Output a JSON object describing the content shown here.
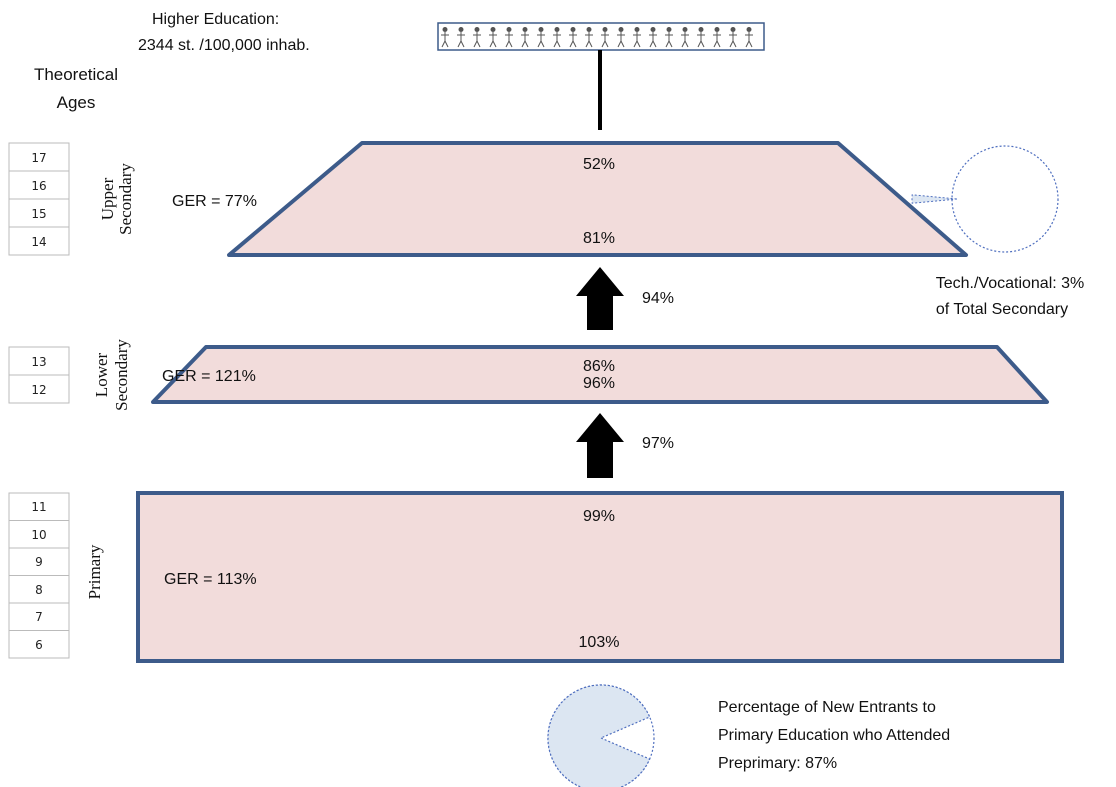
{
  "higher_education": {
    "line1": "Higher Education:",
    "line2": "2344 st. /100,000 inhab.",
    "people_count": 20
  },
  "ages_header": {
    "line1": "Theoretical",
    "line2": "Ages"
  },
  "levels": {
    "upper_secondary": {
      "label_line1": "Upper",
      "label_line2": "Secondary",
      "ages": [
        "17",
        "16",
        "15",
        "14"
      ],
      "ger": "GER = 77%",
      "top_rate": "52%",
      "bottom_rate": "81%"
    },
    "lower_secondary": {
      "label_line1": "Lower",
      "label_line2": "Secondary",
      "ages": [
        "13",
        "12"
      ],
      "ger": "GER = 121%",
      "top_rate": "86%",
      "bottom_rate": "96%"
    },
    "primary": {
      "label": "Primary",
      "ages": [
        "11",
        "10",
        "9",
        "8",
        "7",
        "6"
      ],
      "ger": "GER = 113%",
      "top_rate": "99%",
      "bottom_rate": "103%"
    }
  },
  "transitions": {
    "lower_to_upper": "94%",
    "primary_to_lower": "97%"
  },
  "tech_vocational": {
    "line1": "Tech./Vocational: 3%",
    "line2": "of Total Secondary",
    "share": 0.03
  },
  "preprimary": {
    "line1": "Percentage of New Entrants to",
    "line2": "Primary Education who Attended",
    "line3": "Preprimary: 87%",
    "share": 0.87
  },
  "colors": {
    "fill": "#f2dcdb",
    "outline": "#3d5b8a",
    "pie_fill": "#dce6f2",
    "pie_edge": "#4f6fbf",
    "arrow": "#000000"
  }
}
